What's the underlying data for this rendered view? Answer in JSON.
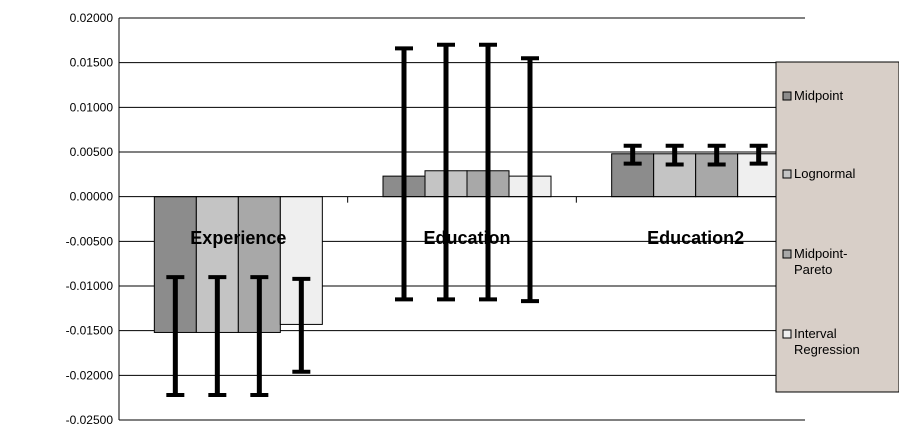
{
  "chart_data": {
    "type": "bar",
    "categories": [
      "Experience",
      "Education",
      "Education2"
    ],
    "series": [
      {
        "name": "Midpoint",
        "values": [
          -0.0152,
          0.0023,
          0.0048
        ],
        "err_low": [
          -0.0222,
          -0.0115,
          0.0037
        ],
        "err_high": [
          -0.009,
          0.0166,
          0.0057
        ]
      },
      {
        "name": "Lognormal",
        "values": [
          -0.0152,
          0.0029,
          0.0048
        ],
        "err_low": [
          -0.0222,
          -0.0115,
          0.0036
        ],
        "err_high": [
          -0.009,
          0.017,
          0.0057
        ]
      },
      {
        "name": "Midpoint-\nPareto",
        "values": [
          -0.0152,
          0.0029,
          0.0048
        ],
        "err_low": [
          -0.0222,
          -0.0115,
          0.0036
        ],
        "err_high": [
          -0.009,
          0.017,
          0.0057
        ]
      },
      {
        "name": "Interval\nRegression",
        "values": [
          -0.0143,
          0.0023,
          0.0048
        ],
        "err_low": [
          -0.0196,
          -0.0117,
          0.0037
        ],
        "err_high": [
          -0.0092,
          0.0155,
          0.0057
        ]
      }
    ],
    "ylim": [
      -0.025,
      0.02
    ],
    "yticks": [
      "0.02000",
      "0.01500",
      "0.01000",
      "0.00500",
      "0.00000",
      "-0.00500",
      "-0.01000",
      "-0.01500",
      "-0.02000",
      "-0.02500"
    ],
    "grid": true,
    "legend_position": "right",
    "colors": {
      "series": [
        "#8c8c8c",
        "#c4c4c4",
        "#a8a8a8",
        "#efefef"
      ],
      "legend_bg": "#d8cfc8",
      "gridline": "#000000",
      "error_bar": "#000000"
    }
  }
}
